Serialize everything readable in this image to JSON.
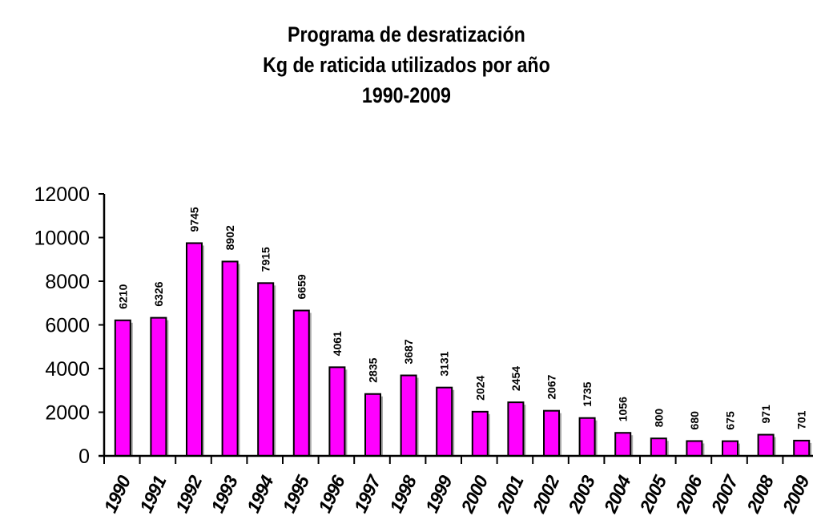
{
  "chart_data": {
    "type": "bar",
    "title": [
      "Programa de desratización",
      "Kg de raticida utilizados por año",
      "1990-2009"
    ],
    "xlabel": "",
    "ylabel": "",
    "categories": [
      "1990",
      "1991",
      "1992",
      "1993",
      "1994",
      "1995",
      "1996",
      "1997",
      "1998",
      "1999",
      "2000",
      "2001",
      "2002",
      "2003",
      "2004",
      "2005",
      "2006",
      "2007",
      "2008",
      "2009"
    ],
    "values": [
      6210,
      6326,
      9745,
      8902,
      7915,
      6659,
      4061,
      2835,
      3687,
      3131,
      2024,
      2454,
      2067,
      1735,
      1056,
      800,
      680,
      675,
      971,
      701
    ],
    "data_labels": [
      "6210",
      "6326",
      "9745",
      "8902",
      "7915",
      "6659",
      "4061",
      "2835",
      "3687",
      "3131",
      "2024",
      "2454",
      "2067",
      "1735",
      "1056",
      "800",
      "680",
      "675",
      "971",
      "701"
    ],
    "ylim": [
      0,
      12000
    ],
    "yticks": [
      0,
      2000,
      4000,
      6000,
      8000,
      10000,
      12000
    ],
    "ytick_labels": [
      "0",
      "2000",
      "4000",
      "6000",
      "8000",
      "10000",
      "12000"
    ],
    "grid": false,
    "legend": "none",
    "bar_color": "#ff00ff",
    "bar_edge_color": "#000000"
  }
}
